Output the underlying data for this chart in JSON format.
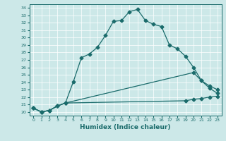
{
  "title": "",
  "xlabel": "Humidex (Indice chaleur)",
  "ylabel": "",
  "bg_color": "#cce8e8",
  "line_color": "#1a6b6b",
  "xlim": [
    -0.5,
    23.5
  ],
  "ylim": [
    19.5,
    34.5
  ],
  "yticks": [
    20,
    21,
    22,
    23,
    24,
    25,
    26,
    27,
    28,
    29,
    30,
    31,
    32,
    33,
    34
  ],
  "xticks": [
    0,
    1,
    2,
    3,
    4,
    5,
    6,
    7,
    8,
    9,
    10,
    11,
    12,
    13,
    14,
    15,
    16,
    17,
    18,
    19,
    20,
    21,
    22,
    23
  ],
  "lines": [
    {
      "x": [
        0,
        1,
        2,
        3,
        4,
        5,
        6,
        7,
        8,
        9,
        10,
        11,
        12,
        13,
        14,
        15,
        16,
        17,
        18,
        19,
        20,
        21,
        22,
        23
      ],
      "y": [
        20.5,
        20.0,
        20.2,
        20.8,
        21.2,
        24.1,
        27.3,
        27.8,
        28.7,
        30.3,
        32.2,
        32.3,
        33.5,
        33.8,
        32.3,
        31.8,
        31.5,
        29.0,
        28.5,
        27.5,
        26.0,
        24.2,
        23.2,
        22.5
      ]
    },
    {
      "x": [
        0,
        1,
        2,
        3,
        4,
        20,
        21,
        22,
        23
      ],
      "y": [
        20.5,
        20.0,
        20.2,
        20.8,
        21.2,
        25.3,
        24.2,
        23.5,
        23.0
      ]
    },
    {
      "x": [
        0,
        1,
        2,
        3,
        4,
        19,
        20,
        21,
        22,
        23
      ],
      "y": [
        20.5,
        20.0,
        20.2,
        20.8,
        21.2,
        21.5,
        21.7,
        21.8,
        22.0,
        22.1
      ]
    }
  ]
}
